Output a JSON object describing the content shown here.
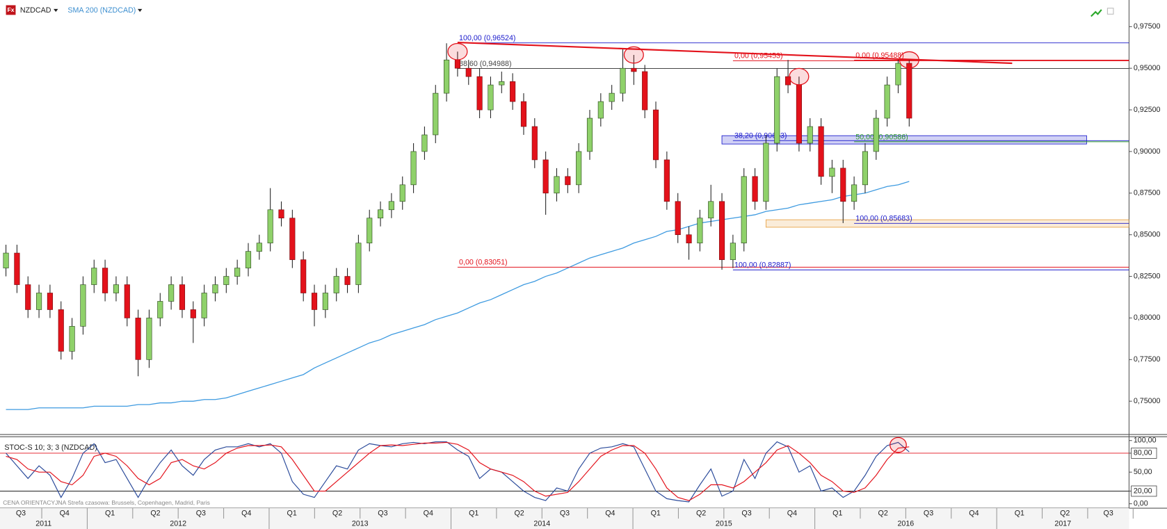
{
  "header": {
    "icon": "Fx",
    "symbol": "NZDCAD"
  },
  "chart_data": [
    {
      "type": "candlestick",
      "up_color": "#8fd16a",
      "down_color": "#e3121b",
      "open": [
        0.83,
        0.839,
        0.82,
        0.805,
        0.815,
        0.805,
        0.78,
        0.795,
        0.82,
        0.83,
        0.815,
        0.82,
        0.8,
        0.775,
        0.8,
        0.81,
        0.82,
        0.805,
        0.8,
        0.815,
        0.82,
        0.825,
        0.83,
        0.84,
        0.845,
        0.865,
        0.86,
        0.835,
        0.815,
        0.805,
        0.815,
        0.825,
        0.82,
        0.845,
        0.86,
        0.865,
        0.87,
        0.88,
        0.9,
        0.91,
        0.935,
        0.955,
        0.95,
        0.945,
        0.925,
        0.94,
        0.942,
        0.93,
        0.915,
        0.895,
        0.875,
        0.885,
        0.88,
        0.9,
        0.92,
        0.93,
        0.935,
        0.95,
        0.948,
        0.925,
        0.895,
        0.87,
        0.85,
        0.845,
        0.86,
        0.87,
        0.835,
        0.845,
        0.885,
        0.87,
        0.905,
        0.945,
        0.94,
        0.905,
        0.915,
        0.885,
        0.89,
        0.87,
        0.88,
        0.9,
        0.92,
        0.94,
        0.953
      ],
      "high": [
        0.844,
        0.844,
        0.825,
        0.82,
        0.82,
        0.81,
        0.8,
        0.825,
        0.835,
        0.835,
        0.825,
        0.825,
        0.805,
        0.805,
        0.815,
        0.825,
        0.825,
        0.81,
        0.82,
        0.825,
        0.83,
        0.835,
        0.845,
        0.85,
        0.878,
        0.87,
        0.865,
        0.84,
        0.82,
        0.82,
        0.83,
        0.83,
        0.85,
        0.865,
        0.87,
        0.875,
        0.885,
        0.905,
        0.915,
        0.94,
        0.965,
        0.96,
        0.955,
        0.95,
        0.945,
        0.948,
        0.947,
        0.935,
        0.92,
        0.9,
        0.89,
        0.89,
        0.905,
        0.925,
        0.935,
        0.94,
        0.962,
        0.958,
        0.952,
        0.93,
        0.9,
        0.875,
        0.855,
        0.865,
        0.88,
        0.875,
        0.85,
        0.89,
        0.89,
        0.91,
        0.95,
        0.955,
        0.945,
        0.92,
        0.92,
        0.895,
        0.895,
        0.885,
        0.905,
        0.925,
        0.945,
        0.955,
        0.955
      ],
      "low": [
        0.825,
        0.815,
        0.8,
        0.8,
        0.8,
        0.775,
        0.775,
        0.79,
        0.815,
        0.81,
        0.81,
        0.795,
        0.765,
        0.77,
        0.795,
        0.805,
        0.8,
        0.785,
        0.795,
        0.81,
        0.815,
        0.82,
        0.825,
        0.835,
        0.84,
        0.855,
        0.83,
        0.81,
        0.795,
        0.8,
        0.81,
        0.815,
        0.815,
        0.84,
        0.855,
        0.86,
        0.865,
        0.875,
        0.895,
        0.905,
        0.93,
        0.945,
        0.94,
        0.92,
        0.92,
        0.935,
        0.925,
        0.91,
        0.89,
        0.862,
        0.87,
        0.875,
        0.875,
        0.895,
        0.915,
        0.925,
        0.93,
        0.94,
        0.92,
        0.89,
        0.865,
        0.845,
        0.835,
        0.84,
        0.855,
        0.829,
        0.83,
        0.84,
        0.865,
        0.865,
        0.9,
        0.935,
        0.9,
        0.9,
        0.88,
        0.875,
        0.857,
        0.865,
        0.875,
        0.895,
        0.915,
        0.935,
        0.915
      ],
      "close": [
        0.839,
        0.82,
        0.805,
        0.815,
        0.805,
        0.78,
        0.795,
        0.82,
        0.83,
        0.815,
        0.82,
        0.8,
        0.775,
        0.8,
        0.81,
        0.82,
        0.805,
        0.8,
        0.815,
        0.82,
        0.825,
        0.83,
        0.84,
        0.845,
        0.865,
        0.86,
        0.835,
        0.815,
        0.805,
        0.815,
        0.825,
        0.82,
        0.845,
        0.86,
        0.865,
        0.87,
        0.88,
        0.9,
        0.91,
        0.935,
        0.955,
        0.95,
        0.945,
        0.925,
        0.94,
        0.942,
        0.93,
        0.915,
        0.895,
        0.875,
        0.885,
        0.88,
        0.9,
        0.92,
        0.93,
        0.935,
        0.95,
        0.948,
        0.925,
        0.895,
        0.87,
        0.85,
        0.845,
        0.86,
        0.87,
        0.835,
        0.845,
        0.885,
        0.87,
        0.905,
        0.945,
        0.94,
        0.905,
        0.915,
        0.885,
        0.89,
        0.87,
        0.88,
        0.9,
        0.92,
        0.94,
        0.953,
        0.92
      ],
      "series": [
        {
          "name": "SMA 200 (NZDCAD)",
          "color": "#3d9ae0",
          "values": [
            0.745,
            0.745,
            0.745,
            0.746,
            0.746,
            0.746,
            0.746,
            0.746,
            0.747,
            0.747,
            0.747,
            0.747,
            0.748,
            0.748,
            0.749,
            0.749,
            0.75,
            0.75,
            0.751,
            0.751,
            0.752,
            0.754,
            0.756,
            0.758,
            0.76,
            0.762,
            0.764,
            0.766,
            0.77,
            0.773,
            0.776,
            0.779,
            0.782,
            0.785,
            0.787,
            0.79,
            0.792,
            0.794,
            0.796,
            0.799,
            0.801,
            0.803,
            0.806,
            0.809,
            0.811,
            0.814,
            0.817,
            0.82,
            0.822,
            0.825,
            0.827,
            0.83,
            0.833,
            0.836,
            0.838,
            0.84,
            0.842,
            0.845,
            0.847,
            0.849,
            0.852,
            0.853,
            0.855,
            0.857,
            0.858,
            0.859,
            0.86,
            0.861,
            0.862,
            0.864,
            0.865,
            0.866,
            0.868,
            0.869,
            0.87,
            0.871,
            0.873,
            0.874,
            0.875,
            0.877,
            0.879,
            0.88,
            0.882
          ]
        }
      ],
      "ylim": [
        0.73,
        0.991
      ],
      "yticks": [
        {
          "value": 0.975,
          "label": "0,97500"
        },
        {
          "value": 0.95,
          "label": "0,95000"
        },
        {
          "value": 0.925,
          "label": "0,92500"
        },
        {
          "value": 0.9,
          "label": "0,90000"
        },
        {
          "value": 0.875,
          "label": "0,87500"
        },
        {
          "value": 0.85,
          "label": "0,85000"
        },
        {
          "value": 0.825,
          "label": "0,82500"
        },
        {
          "value": 0.8,
          "label": "0,80000"
        },
        {
          "value": 0.775,
          "label": "0,77500"
        },
        {
          "value": 0.75,
          "label": "0,75000"
        }
      ],
      "levels": [
        {
          "label": "100,00 (0,96524)",
          "value": 0.96524,
          "color": "#1a1acc"
        },
        {
          "label": "88,60 (0,94988)",
          "value": 0.94988,
          "color": "#444444"
        },
        {
          "label": "0,00 (0,95453)",
          "value": 0.95453,
          "color": "#e3121b"
        },
        {
          "label": "0,00 (0,95488)",
          "value": 0.95488,
          "color": "#e3121b"
        },
        {
          "label": "38,20 (0,90653)",
          "value": 0.90653,
          "color": "#1a1acc"
        },
        {
          "label": "50,00 (0,90586)",
          "value": 0.90586,
          "color": "#2e9a2e"
        },
        {
          "label": "100,00 (0,85683)",
          "value": 0.85683,
          "color": "#1a1acc"
        },
        {
          "label": "0,00 (0,83051)",
          "value": 0.83051,
          "color": "#e3121b"
        },
        {
          "label": "100,00 (0,82887)",
          "value": 0.82887,
          "color": "#1a1acc"
        }
      ],
      "zones": [
        {
          "low": 0.9045,
          "high": 0.9095,
          "color": "#1a1acc"
        },
        {
          "low": 0.8545,
          "high": 0.859,
          "color": "#e8a040"
        }
      ],
      "trendline": {
        "start": 0.9655,
        "end": 0.953,
        "color": "#e3121b"
      }
    },
    {
      "type": "line",
      "title": "STOC-S 10; 3; 3 (NZDCAD)",
      "series": [
        {
          "color": "#2a4a9a",
          "values": [
            80,
            60,
            40,
            60,
            45,
            10,
            40,
            80,
            95,
            65,
            70,
            40,
            10,
            40,
            65,
            85,
            60,
            45,
            70,
            85,
            90,
            90,
            95,
            90,
            95,
            80,
            35,
            15,
            10,
            35,
            60,
            55,
            85,
            95,
            92,
            90,
            95,
            97,
            95,
            98,
            98,
            85,
            75,
            40,
            55,
            50,
            35,
            20,
            10,
            5,
            25,
            20,
            55,
            80,
            88,
            90,
            95,
            90,
            55,
            20,
            8,
            5,
            3,
            30,
            55,
            12,
            20,
            70,
            40,
            80,
            98,
            90,
            50,
            60,
            20,
            25,
            10,
            20,
            45,
            75,
            92,
            97,
            82
          ]
        },
        {
          "color": "#e3121b",
          "values": [
            75,
            70,
            55,
            50,
            50,
            35,
            30,
            45,
            75,
            80,
            75,
            60,
            40,
            30,
            40,
            65,
            70,
            60,
            55,
            65,
            80,
            88,
            92,
            92,
            93,
            90,
            70,
            45,
            20,
            20,
            35,
            50,
            65,
            80,
            92,
            93,
            92,
            94,
            96,
            96,
            97,
            94,
            85,
            65,
            55,
            50,
            45,
            35,
            20,
            12,
            15,
            18,
            35,
            55,
            75,
            85,
            92,
            92,
            80,
            55,
            25,
            10,
            5,
            15,
            30,
            30,
            25,
            35,
            50,
            65,
            85,
            92,
            80,
            65,
            45,
            35,
            20,
            18,
            25,
            45,
            70,
            88,
            90
          ]
        }
      ],
      "ylim": [
        -7,
        106
      ],
      "yticks": [
        {
          "value": 100,
          "label": "100,00"
        },
        {
          "value": 80,
          "label": "80,00"
        },
        {
          "value": 50,
          "label": "50,00"
        },
        {
          "value": 20,
          "label": "20,00"
        },
        {
          "value": 0,
          "label": "0,00"
        }
      ],
      "levels": [
        {
          "value": 80,
          "color": "#e3121b"
        },
        {
          "value": 20,
          "color": "#222222"
        }
      ]
    }
  ],
  "time_axis": {
    "quarters": [
      "Q3",
      "Q4",
      "Q1",
      "Q2",
      "Q3",
      "Q4",
      "Q1",
      "Q2",
      "Q3",
      "Q4",
      "Q1",
      "Q2",
      "Q3",
      "Q4",
      "Q1",
      "Q2",
      "Q3",
      "Q4",
      "Q1",
      "Q2",
      "Q3",
      "Q4",
      "Q1",
      "Q2",
      "Q3"
    ],
    "years": [
      "2011",
      "2012",
      "2013",
      "2014",
      "2015",
      "2016",
      "2017"
    ]
  },
  "footer": "CENA ORIENTACYJNA   Strefa czasowa: Brussels, Copenhagen, Madrid, Paris"
}
